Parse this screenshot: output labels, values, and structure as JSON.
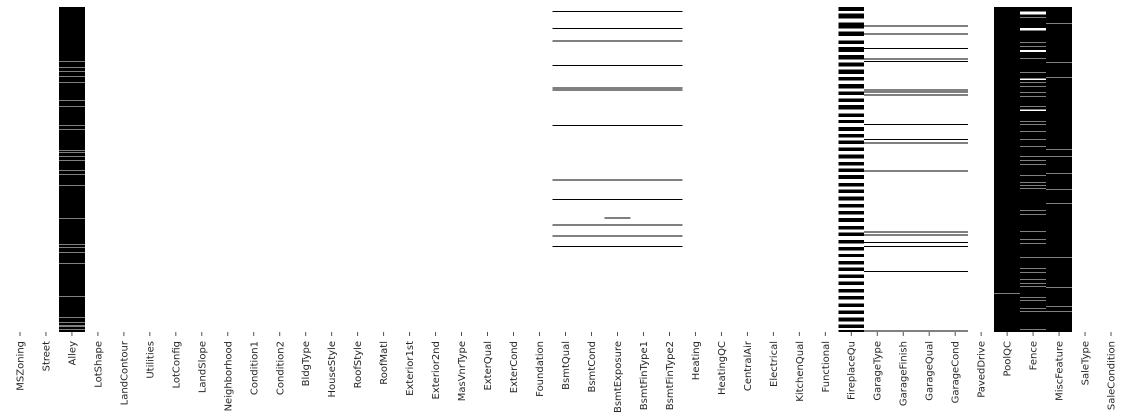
{
  "chart_data": {
    "type": "heatmap",
    "title": "",
    "xlabel": "",
    "ylabel": "",
    "legend": "none",
    "colorbar": false,
    "grid": false,
    "value_colors": {
      "missing": "#000000",
      "present": "#ffffff"
    },
    "n_rows": 1459,
    "columns": [
      "MSZoning",
      "Street",
      "Alley",
      "LotShape",
      "LandContour",
      "Utilities",
      "LotConfig",
      "LandSlope",
      "Neighborhood",
      "Condition1",
      "Condition2",
      "BldgType",
      "HouseStyle",
      "RoofStyle",
      "RoofMatl",
      "Exterior1st",
      "Exterior2nd",
      "MasVnrType",
      "ExterQual",
      "ExterCond",
      "Foundation",
      "BsmtQual",
      "BsmtCond",
      "BsmtExposure",
      "BsmtFinType1",
      "BsmtFinType2",
      "Heating",
      "HeatingQC",
      "CentralAir",
      "Electrical",
      "KitchenQual",
      "Functional",
      "FireplaceQu",
      "GarageType",
      "GarageFinish",
      "GarageQual",
      "GarageCond",
      "PavedDrive",
      "PoolQC",
      "Fence",
      "MiscFeature",
      "SaleType",
      "SaleCondition"
    ],
    "missing_rows": {
      "Alley": {
        "fill": "all_except",
        "rows": [
          238,
          240,
          245,
          248,
          251,
          255,
          258,
          260,
          270,
          290,
          295,
          302,
          310,
          318,
          322,
          340,
          388,
          392,
          396,
          403,
          410,
          418,
          422,
          425,
          430,
          445,
          458,
          462,
          475,
          482,
          485,
          490,
          495,
          520,
          525,
          530,
          548,
          552,
          565,
          572,
          578,
          582,
          590,
          610,
          630,
          645,
          652,
          655,
          660,
          670,
          680,
          690,
          695,
          700,
          720,
          735,
          742,
          750,
          760,
          770,
          790,
          800,
          830,
          850,
          870,
          900,
          950,
          1000,
          1050,
          1065,
          1068,
          1075,
          1080,
          1100,
          1150,
          1180,
          1185,
          1200,
          1250,
          1300,
          1360,
          1375,
          1395,
          1398,
          1402,
          1405,
          1415,
          1420,
          1428,
          1435,
          1440,
          1448
        ]
      },
      "BsmtQual": [
        18,
        95,
        150,
        260,
        362,
        370,
        530,
        775,
        862,
        977,
        1025,
        1072
      ],
      "BsmtCond": [
        18,
        95,
        150,
        260,
        362,
        370,
        530,
        775,
        862,
        977,
        1025,
        1072
      ],
      "BsmtExposure": [
        18,
        95,
        150,
        260,
        362,
        370,
        530,
        775,
        862,
        945,
        977,
        1025,
        1072
      ],
      "BsmtFinType1": [
        18,
        95,
        150,
        260,
        362,
        370,
        530,
        775,
        862,
        977,
        1025,
        1072
      ],
      "BsmtFinType2": [
        18,
        95,
        150,
        260,
        362,
        370,
        530,
        775,
        862,
        977,
        1025,
        1072
      ],
      "FireplaceQu": [
        [
          0,
          18
        ],
        [
          30,
          50
        ],
        [
          70,
          95
        ],
        [
          110,
          130
        ],
        [
          150,
          165
        ],
        [
          180,
          200
        ],
        [
          215,
          235
        ],
        [
          250,
          265
        ],
        [
          280,
          300
        ],
        [
          315,
          330
        ],
        [
          345,
          365
        ],
        [
          380,
          395
        ],
        [
          410,
          425
        ],
        [
          440,
          460
        ],
        [
          478,
          492
        ],
        [
          508,
          520
        ],
        [
          538,
          555
        ],
        [
          570,
          585
        ],
        [
          600,
          615
        ],
        [
          630,
          645
        ],
        [
          662,
          680
        ],
        [
          695,
          710
        ],
        [
          725,
          740
        ],
        [
          755,
          772
        ],
        [
          790,
          805
        ],
        [
          820,
          835
        ],
        [
          850,
          868
        ],
        [
          885,
          900
        ],
        [
          915,
          930
        ],
        [
          948,
          965
        ],
        [
          982,
          998
        ],
        [
          1012,
          1028
        ],
        [
          1045,
          1060
        ],
        [
          1078,
          1092
        ],
        [
          1108,
          1122
        ],
        [
          1140,
          1155
        ],
        [
          1170,
          1185
        ],
        [
          1200,
          1215
        ],
        [
          1232,
          1248
        ],
        [
          1265,
          1280
        ],
        [
          1298,
          1312
        ],
        [
          1330,
          1345
        ],
        [
          1362,
          1378
        ],
        [
          1395,
          1410
        ],
        [
          1425,
          1440
        ],
        [
          1450,
          1459
        ]
      ],
      "GarageType": [
        82,
        120,
        185,
        232,
        243,
        370,
        380,
        392,
        525,
        592,
        608,
        734,
        1008,
        1022,
        1055,
        1072,
        1186,
        1452
      ],
      "GarageFinish": [
        82,
        120,
        185,
        232,
        243,
        370,
        380,
        392,
        525,
        592,
        608,
        734,
        1008,
        1022,
        1055,
        1072,
        1186,
        1452
      ],
      "GarageQual": [
        82,
        120,
        185,
        232,
        243,
        370,
        380,
        392,
        525,
        592,
        608,
        734,
        1008,
        1022,
        1055,
        1072,
        1186,
        1452
      ],
      "GarageCond": [
        82,
        120,
        185,
        232,
        243,
        370,
        380,
        392,
        525,
        592,
        608,
        734,
        1008,
        1022,
        1055,
        1072,
        1186,
        1452
      ],
      "PoolQC": {
        "fill": "all_except",
        "rows": [
          812,
          1287,
          1297,
          1385
        ]
      },
      "Fence": {
        "fill": "all_except",
        "rows": [
          [
            20,
            32
          ],
          48,
          62,
          80,
          [
            95,
            104
          ],
          118,
          132,
          150,
          160,
          178,
          [
            192,
            200
          ],
          215,
          230,
          248,
          262,
          275,
          292,
          305,
          [
            320,
            326
          ],
          340,
          355,
          368,
          382,
          400,
          412,
          428,
          445,
          [
            460,
            466
          ],
          480,
          498,
          512,
          528,
          545,
          560,
          578,
          595,
          610,
          625,
          642,
          660,
          672,
          690,
          705,
          720,
          738,
          755,
          770,
          788,
          800,
          815,
          832,
          850,
          868,
          882,
          895,
          912,
          930,
          945,
          962,
          978,
          992,
          1008,
          1025,
          1042,
          1060,
          1072,
          1090,
          1108,
          1125,
          1140,
          1158,
          1172,
          1190,
          1205,
          1222,
          1240,
          1255,
          1270,
          1288,
          1302,
          1318,
          1335,
          1352,
          1368,
          1385,
          1400,
          1418,
          1432,
          1448
        ]
      },
      "MiscFeature": {
        "fill": "all_except",
        "rows": [
          8,
          75,
          82,
          168,
          250,
          315,
          348,
          428,
          478,
          525,
          565,
          612,
          640,
          655,
          672,
          748,
          820,
          880,
          938,
          982,
          1003,
          1045,
          1095,
          1125,
          1180,
          1260,
          1345,
          1368,
          1400,
          1440
        ]
      }
    }
  }
}
